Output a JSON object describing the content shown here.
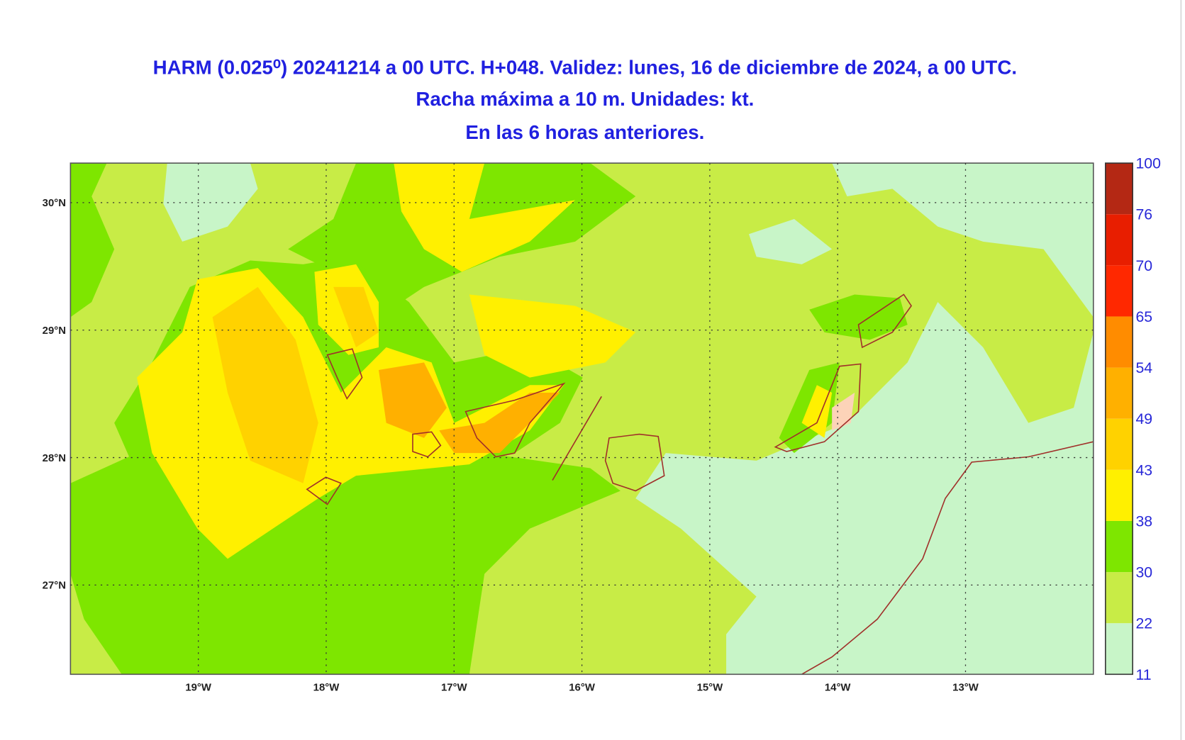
{
  "header": {
    "lines": [
      "HARM (0.025⁰) 20241214 a 00 UTC. H+048. Validez: lunes, 16 de diciembre de 2024, a 00 UTC.",
      "Racha máxima a 10 m. Unidades: kt.",
      "En las 6 horas anteriores."
    ]
  },
  "map": {
    "xlim": [
      -20,
      -12
    ],
    "ylim": [
      26.3,
      30.31
    ],
    "grid": true,
    "lon_ticks": [
      {
        "value": -19,
        "label": "19°W"
      },
      {
        "value": -18,
        "label": "18°W"
      },
      {
        "value": -17,
        "label": "17°W"
      },
      {
        "value": -16,
        "label": "16°W"
      },
      {
        "value": -15,
        "label": "15°W"
      },
      {
        "value": -14,
        "label": "14°W"
      },
      {
        "value": -13,
        "label": "13°W"
      }
    ],
    "lat_ticks": [
      {
        "value": 30,
        "label": "30°N"
      },
      {
        "value": 29,
        "label": "29°N"
      },
      {
        "value": 28,
        "label": "28°N"
      },
      {
        "value": 27,
        "label": "27°N"
      }
    ]
  },
  "colorbar": {
    "levels": [
      11,
      22,
      30,
      38,
      43,
      49,
      54,
      65,
      70,
      76,
      100
    ],
    "colors": [
      "#c8f5c8",
      "#c8ec46",
      "#7ee600",
      "#fff000",
      "#ffd200",
      "#ffb000",
      "#ff8c00",
      "#ff2800",
      "#e81e00",
      "#b42814"
    ]
  }
}
